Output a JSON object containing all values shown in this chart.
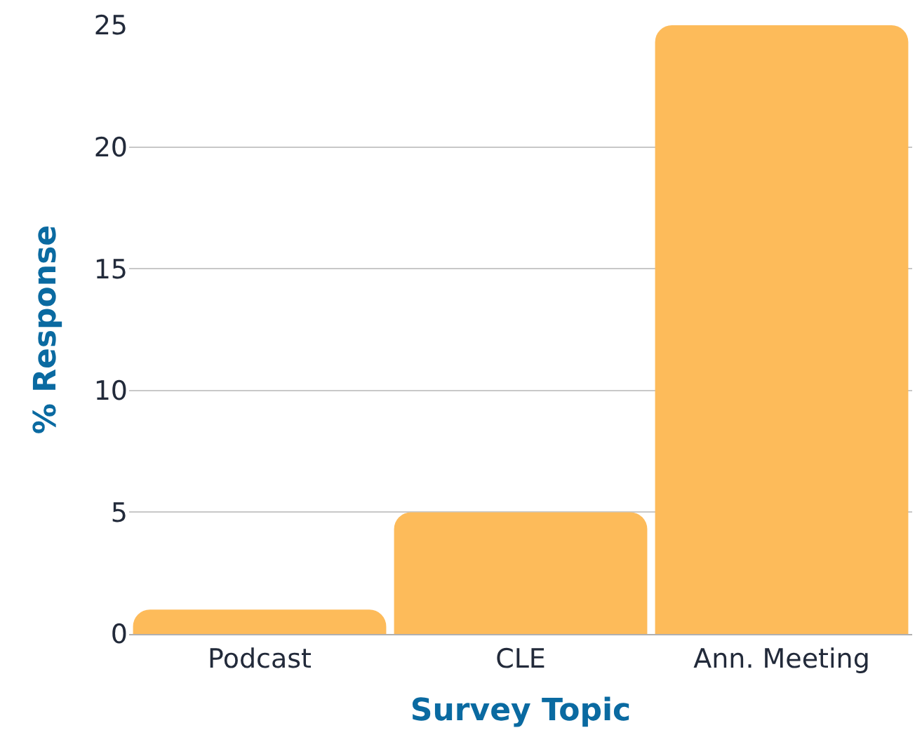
{
  "chart_data": {
    "type": "bar",
    "xlabel": "Survey Topic",
    "ylabel": "% Response",
    "categories": [
      "Podcast",
      "CLE",
      "Ann. Meeting"
    ],
    "values": [
      1,
      5,
      25
    ],
    "color": "#fdbb5a",
    "ylim": [
      0,
      25
    ],
    "yticks": [
      0,
      5,
      10,
      15,
      20,
      25
    ],
    "grid": "y",
    "legend": false
  }
}
